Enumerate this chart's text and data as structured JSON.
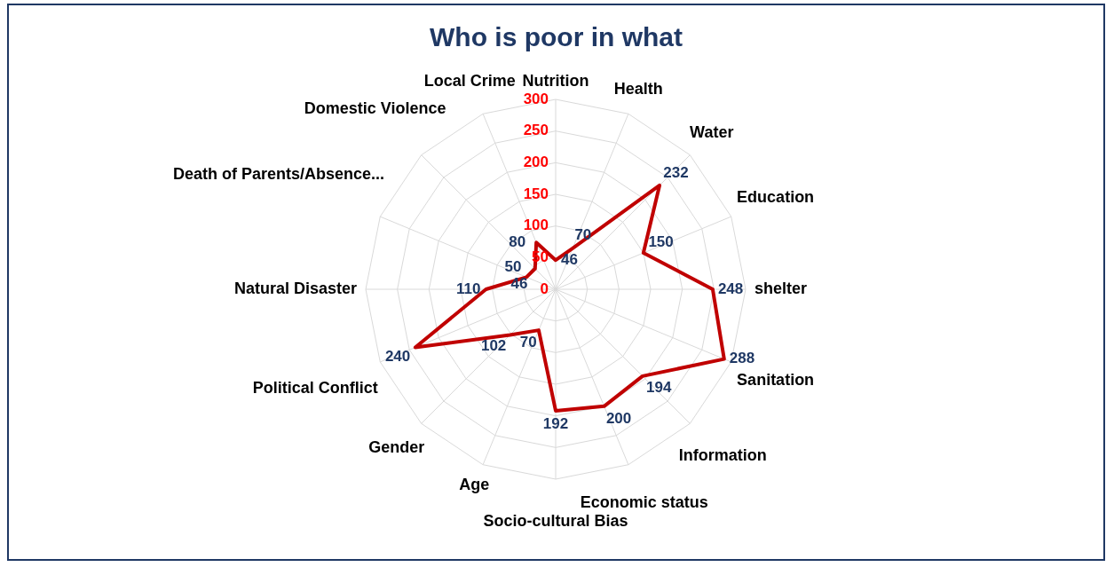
{
  "chart_data": {
    "type": "radar",
    "title": "Who is poor in what",
    "categories": [
      "Nutrition",
      "Health",
      "Water",
      "Education",
      "shelter",
      "Sanitation",
      "Information",
      "Economic status",
      "Socio-cultural Bias",
      "Age",
      "Gender",
      "Political Conflict",
      "Natural Disaster",
      "Death of Parents/Absence...",
      "Domestic Violence",
      "Local Crime"
    ],
    "series": [
      {
        "color": "#c00000",
        "values": [
          46,
          70,
          232,
          150,
          248,
          288,
          194,
          200,
          192,
          70,
          102,
          240,
          110,
          50,
          46,
          80
        ]
      }
    ],
    "ylim": [
      0,
      300
    ],
    "yticks": [
      0,
      50,
      100,
      150,
      200,
      250,
      300
    ],
    "grid": true,
    "marker": "none",
    "data_labels": true
  }
}
